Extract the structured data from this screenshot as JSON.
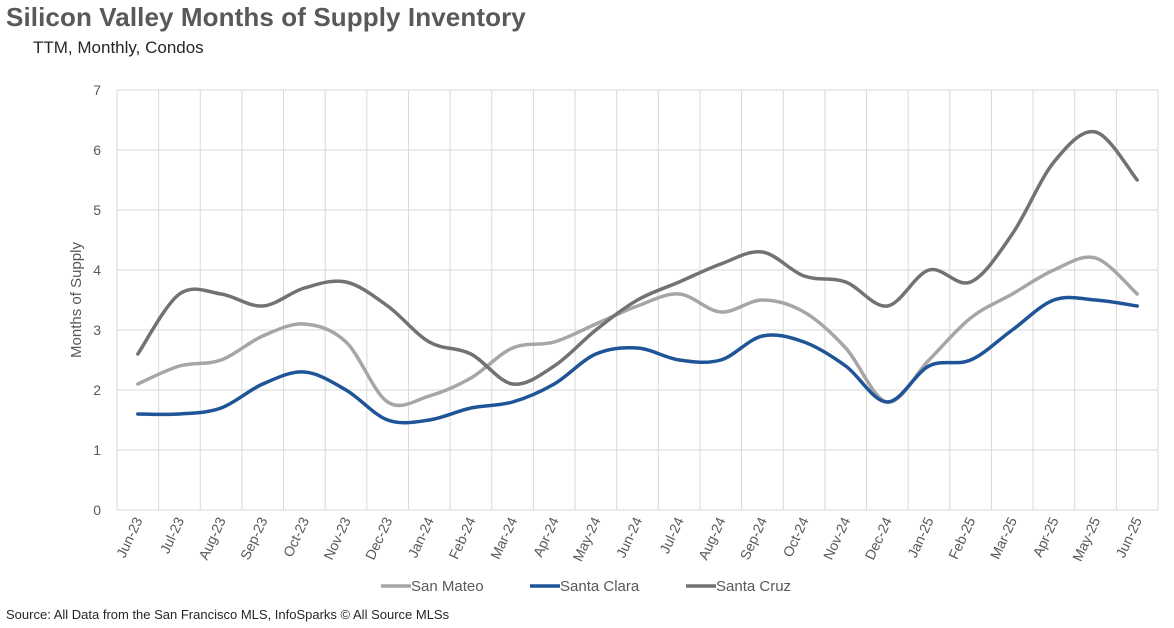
{
  "chart_data": {
    "type": "line",
    "title": "Silicon Valley Months of Supply Inventory",
    "subtitle": "TTM, Monthly, Condos",
    "ylabel": "Months of Supply",
    "xlabel": "",
    "ylim": [
      0,
      7
    ],
    "yticks": [
      "0",
      "1",
      "2",
      "3",
      "4",
      "5",
      "6",
      "7"
    ],
    "grid": true,
    "legend_position": "bottom",
    "categories": [
      "Jun-23",
      "Jul-23",
      "Aug-23",
      "Sep-23",
      "Oct-23",
      "Nov-23",
      "Dec-23",
      "Jan-24",
      "Feb-24",
      "Mar-24",
      "Apr-24",
      "May-24",
      "Jun-24",
      "Jul-24",
      "Aug-24",
      "Sep-24",
      "Oct-24",
      "Nov-24",
      "Dec-24",
      "Jan-25",
      "Feb-25",
      "Mar-25",
      "Apr-25",
      "May-25",
      "Jun-25"
    ],
    "series": [
      {
        "name": "San Mateo",
        "color": "#a6a6a6",
        "values": [
          2.1,
          2.4,
          2.5,
          2.9,
          3.1,
          2.8,
          1.8,
          1.9,
          2.2,
          2.7,
          2.8,
          3.1,
          3.4,
          3.6,
          3.3,
          3.5,
          3.3,
          2.7,
          1.8,
          2.5,
          3.2,
          3.6,
          4.0,
          4.2,
          3.6
        ]
      },
      {
        "name": "Santa Clara",
        "color": "#1f5597",
        "values": [
          1.6,
          1.6,
          1.7,
          2.1,
          2.3,
          2.0,
          1.5,
          1.5,
          1.7,
          1.8,
          2.1,
          2.6,
          2.7,
          2.5,
          2.5,
          2.9,
          2.8,
          2.4,
          1.8,
          2.4,
          2.5,
          3.0,
          3.5,
          3.5,
          3.4
        ]
      },
      {
        "name": "Santa Cruz",
        "color": "#767171",
        "values": [
          2.6,
          3.6,
          3.6,
          3.4,
          3.7,
          3.8,
          3.4,
          2.8,
          2.6,
          2.1,
          2.4,
          3.0,
          3.5,
          3.8,
          4.1,
          4.3,
          3.9,
          3.8,
          3.4,
          4.0,
          3.8,
          4.6,
          5.8,
          6.3,
          5.5
        ]
      }
    ]
  },
  "source": "Source: All Data from the San Francisco MLS, InfoSparks © All Source MLSs"
}
